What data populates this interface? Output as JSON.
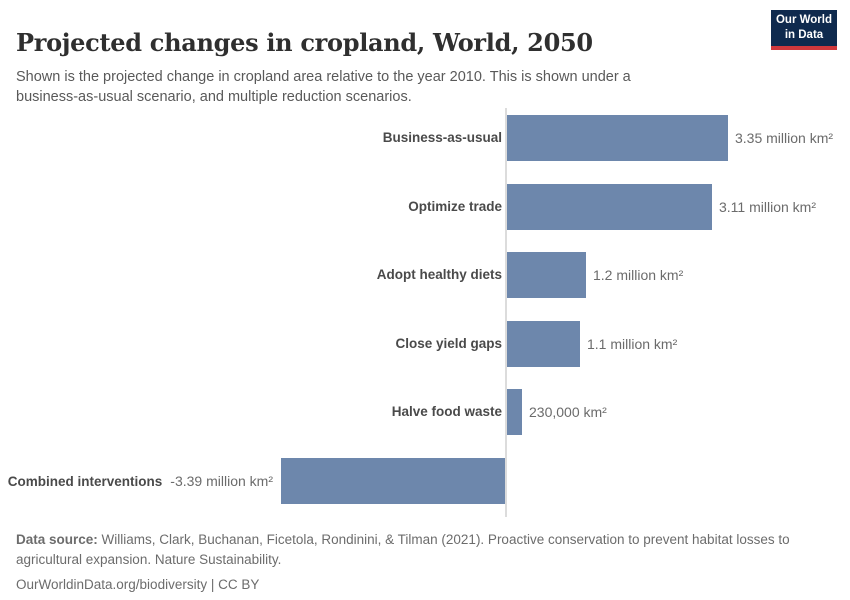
{
  "header": {
    "title": "Projected changes in cropland, World, 2050",
    "subtitle": "Shown is the projected change in cropland area relative to the year 2010. This is shown under a business-as-usual scenario, and multiple reduction scenarios.",
    "logo": {
      "line1": "Our World",
      "line2": "in Data",
      "bg_color": "#0f2a4e",
      "accent_color": "#d0383c"
    }
  },
  "chart_data": {
    "type": "bar",
    "orientation": "horizontal",
    "title": "Projected changes in cropland, World, 2050",
    "unit": "million km²",
    "categories": [
      "Business-as-usual",
      "Optimize trade",
      "Adopt healthy diets",
      "Close yield gaps",
      "Halve food waste",
      "Combined interventions"
    ],
    "values_million_km2": [
      3.35,
      3.11,
      1.2,
      1.1,
      0.23,
      -3.39
    ],
    "value_labels": [
      "3.35 million km²",
      "3.11 million km²",
      "1.2 million km²",
      "1.1 million km²",
      "230,000 km²",
      "-3.39 million km²"
    ],
    "bar_color": "#6d87ac",
    "axis_color": "#dcdcdc",
    "xlim": [
      -3.39,
      3.35
    ],
    "grid": false,
    "legend": false
  },
  "footer": {
    "datasource_label": "Data source:",
    "datasource_text": " Williams, Clark, Buchanan, Ficetola, Rondinini, & Tilman (2021). Proactive conservation to prevent habitat losses to agricultural expansion. Nature Sustainability.",
    "link_text": "OurWorldinData.org/biodiversity",
    "separator": " | ",
    "license_text": "CC BY"
  }
}
